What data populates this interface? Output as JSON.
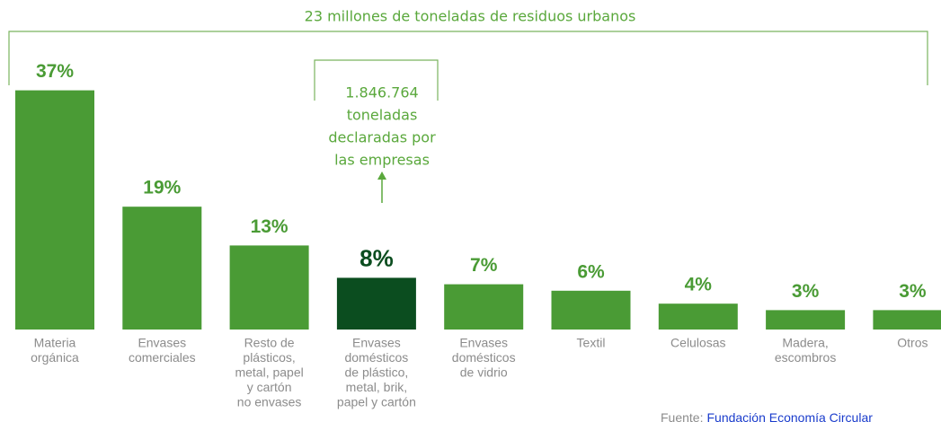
{
  "chart_data": {
    "type": "bar",
    "title": "23 millones de toneladas de residuos urbanos",
    "categories": [
      [
        "Materia",
        "orgánica"
      ],
      [
        "Envases",
        "comerciales"
      ],
      [
        "Resto de",
        "plásticos,",
        "metal, papel",
        "y cartón",
        "no envases"
      ],
      [
        "Envases",
        "domésticos",
        "de plástico,",
        "metal, brik,",
        "papel y cartón"
      ],
      [
        "Envases",
        "domésticos",
        "de vidrio"
      ],
      [
        "Textil"
      ],
      [
        "Celulosas"
      ],
      [
        "Madera,",
        "escombros"
      ],
      [
        "Otros"
      ]
    ],
    "values": [
      37,
      19,
      13,
      8,
      7,
      6,
      4,
      3,
      3
    ],
    "value_labels": [
      "37%",
      "19%",
      "13%",
      "8%",
      "7%",
      "6%",
      "4%",
      "3%",
      "3%"
    ],
    "colors": [
      "#4a9b35",
      "#4a9b35",
      "#4a9b35",
      "#0b4d1f",
      "#4a9b35",
      "#4a9b35",
      "#4a9b35",
      "#4a9b35",
      "#4a9b35"
    ],
    "annotation": [
      "1.846.764",
      "toneladas",
      "declaradas por",
      "las empresas"
    ],
    "source": {
      "label": "Fuente:",
      "text": "Fundación Economía Circular"
    }
  }
}
